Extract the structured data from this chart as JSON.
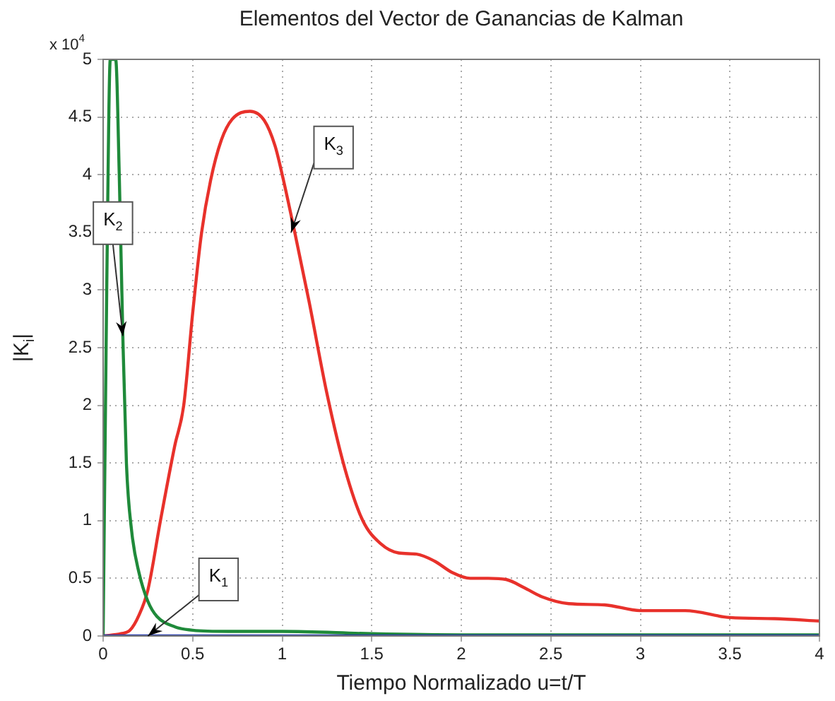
{
  "chart_data": {
    "type": "line",
    "title": "Elementos del Vector de Ganancias de Kalman",
    "xlabel": "Tiempo Normalizado u=t/T",
    "ylabel": "|K$_{i}$|",
    "xlim": [
      0,
      4
    ],
    "xticks": [
      0,
      0.5,
      1,
      1.5,
      2,
      2.5,
      3,
      3.5,
      4
    ],
    "ylim": [
      0,
      5
    ],
    "yticks": [
      0,
      0.5,
      1,
      1.5,
      2,
      2.5,
      3,
      3.5,
      4,
      4.5,
      5
    ],
    "grid": true,
    "legend": false,
    "marker": "none",
    "line_style": "solid",
    "series": [
      {
        "color": "#2b3fa8",
        "x": [
          0,
          1,
          2,
          3,
          4
        ],
        "values": [
          0,
          0,
          0,
          0,
          0
        ]
      },
      {
        "color": "#1f8a3a",
        "x": [
          0,
          0.02,
          0.04,
          0.07,
          0.09,
          0.11,
          0.13,
          0.16,
          0.2,
          0.25,
          0.3,
          0.4,
          0.5,
          0.7,
          1,
          1.5,
          2,
          3,
          4
        ],
        "values": [
          0,
          3,
          5,
          5,
          4,
          2.6,
          1.5,
          0.9,
          0.55,
          0.3,
          0.17,
          0.08,
          0.05,
          0.04,
          0.04,
          0.02,
          0.01,
          0.01,
          0.01
        ]
      },
      {
        "color": "#e8312b",
        "x": [
          0,
          0.1,
          0.15,
          0.2,
          0.25,
          0.32,
          0.4,
          0.45,
          0.5,
          0.55,
          0.6,
          0.66,
          0.72,
          0.82,
          0.9,
          0.96,
          1.0,
          1.07,
          1.15,
          1.25,
          1.35,
          1.45,
          1.55,
          1.65,
          1.75,
          1.85,
          1.95,
          2.05,
          2.15,
          2.25,
          2.35,
          2.45,
          2.6,
          2.8,
          3.0,
          3.25,
          3.5,
          3.75,
          4
        ],
        "values": [
          0,
          0.02,
          0.05,
          0.18,
          0.4,
          1,
          1.65,
          2,
          2.8,
          3.5,
          3.95,
          4.3,
          4.48,
          4.55,
          4.47,
          4.25,
          4,
          3.5,
          2.9,
          2.1,
          1.45,
          1,
          0.8,
          0.72,
          0.71,
          0.65,
          0.55,
          0.5,
          0.5,
          0.49,
          0.42,
          0.34,
          0.28,
          0.27,
          0.22,
          0.22,
          0.16,
          0.15,
          0.13
        ]
      }
    ],
    "annotations": [
      "x 10$^{4}$",
      {
        "text": "K$_{1}$",
        "x": 0.25,
        "y": 0
      },
      {
        "text": "K$_{2}$",
        "x": 0.11,
        "y": 2.6
      },
      {
        "text": "K$_{3}$",
        "x": 1.05,
        "y": 3.5
      }
    ]
  }
}
